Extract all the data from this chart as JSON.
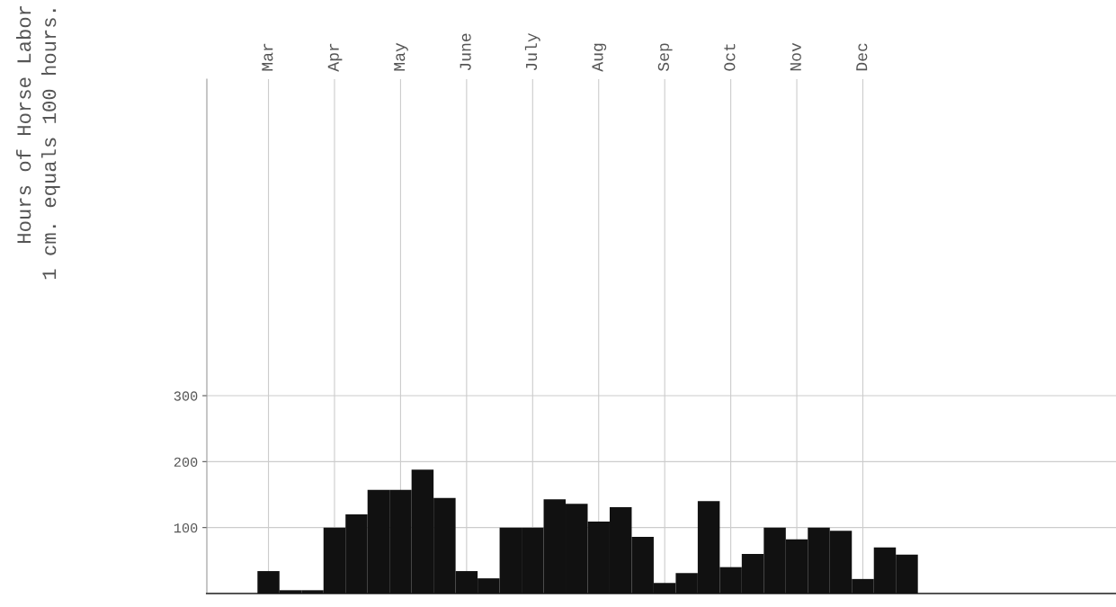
{
  "chart_data": {
    "type": "bar",
    "annotations": [
      "Hours of Horse Labor",
      "1 cm. equals 100 hours."
    ],
    "categories": [
      "Mar",
      null,
      null,
      "Apr",
      null,
      null,
      "May",
      null,
      null,
      "June",
      null,
      null,
      "July",
      null,
      null,
      "Aug",
      null,
      null,
      "Sep",
      null,
      null,
      "Oct",
      null,
      null,
      "Nov",
      null,
      null,
      "Dec",
      null,
      null
    ],
    "values": [
      34,
      5,
      5,
      100,
      120,
      157,
      157,
      188,
      145,
      34,
      23,
      100,
      100,
      143,
      136,
      109,
      131,
      86,
      16,
      31,
      140,
      40,
      60,
      100,
      82,
      100,
      95,
      22,
      70,
      59
    ],
    "color": "#111111",
    "ylim": [
      0,
      780
    ],
    "yticks": [
      100,
      200,
      300
    ],
    "grid": true
  }
}
